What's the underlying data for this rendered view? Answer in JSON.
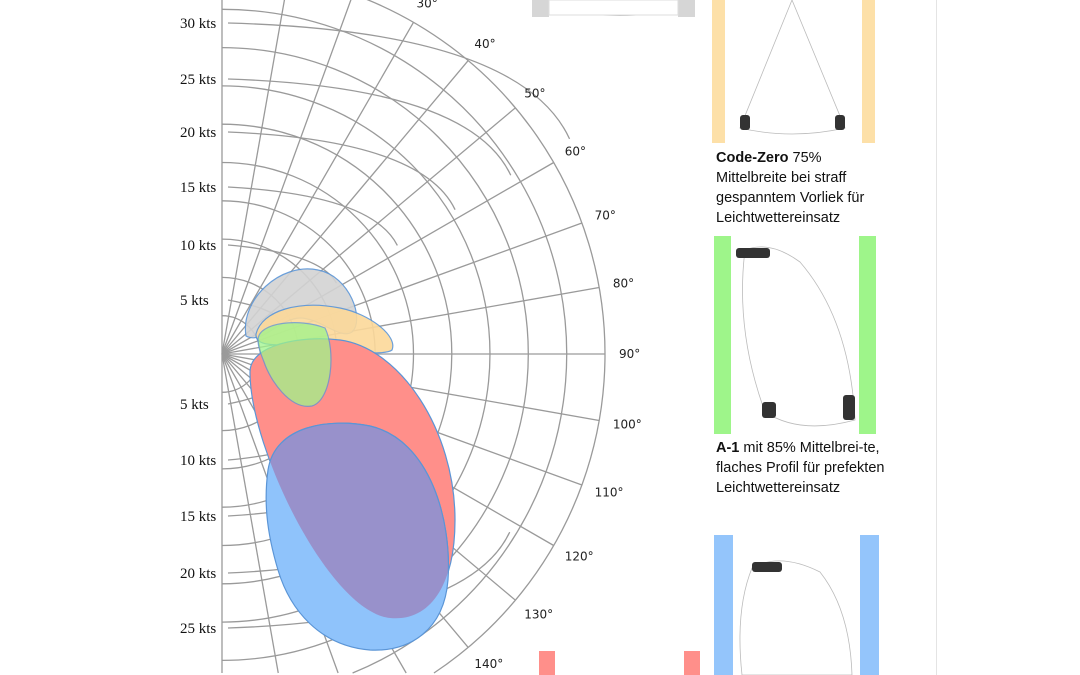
{
  "polar": {
    "speed_labels": [
      "30 kts",
      "25 kts",
      "20 kts",
      "15 kts",
      "10 kts",
      "5 kts",
      "5 kts",
      "10 kts",
      "15 kts",
      "20 kts",
      "25 kts"
    ],
    "angle_labels": [
      "30°",
      "40°",
      "50°",
      "60°",
      "70°",
      "80°",
      "90°",
      "100°",
      "110°",
      "120°",
      "130°",
      "140°"
    ],
    "sail_areas": [
      {
        "sail": "gray",
        "color": "#d3d3d3"
      },
      {
        "sail": "Code-Zero",
        "color": "#fcd99a"
      },
      {
        "sail": "A-1",
        "color": "#9ef58a"
      },
      {
        "sail": "red",
        "color": "#ff8f8a"
      },
      {
        "sail": "blue",
        "color": "#8fc3fb"
      },
      {
        "sail": "overlap",
        "color": "#9891cb"
      }
    ]
  },
  "captions": {
    "code_zero": {
      "title": "Code-Zero",
      "text": " 75% Mittelbreite bei straff gespanntem Vorliek für Leichtwettereinsatz",
      "color": "#fde0a8"
    },
    "a1": {
      "title": "A-1",
      "text": " mit 85% Mittelbrei-te, flaches Profil für prefekten Leichtwettereinsatz",
      "color": "#9ef58a"
    },
    "blue_sail": {
      "color": "#94c5fb"
    },
    "red_sail": {
      "color": "#ff8f8a"
    },
    "gray_sail": {
      "color": "#d6d6d6"
    }
  }
}
